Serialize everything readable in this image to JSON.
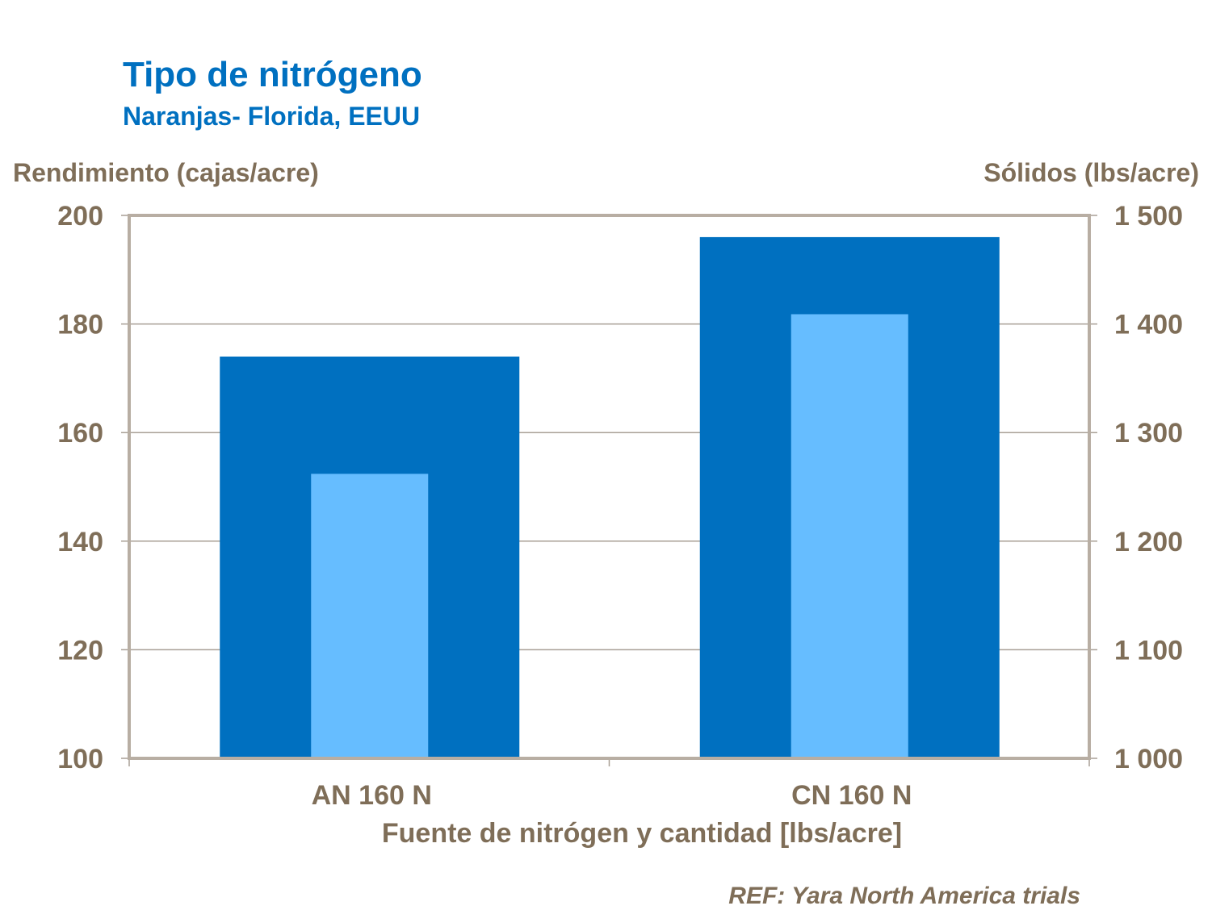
{
  "chart_data": {
    "type": "bar",
    "title": "Tipo de nitrógeno",
    "subtitle": "Naranjas- Florida, EEUU",
    "xlabel": "Fuente de nitrógen y cantidad [lbs/acre]",
    "ylabel": "Rendimiento (cajas/acre)",
    "y2label": "Sólidos (lbs/acre)",
    "categories": [
      "AN 160 N",
      "CN 160 N"
    ],
    "series": [
      {
        "axis": "left",
        "color": "#0070C0",
        "values": [
          174,
          196
        ]
      },
      {
        "axis": "right",
        "color": "#66BDFF",
        "values": [
          1262,
          1409
        ]
      }
    ],
    "ylim": [
      100,
      200
    ],
    "y2lim": [
      1000,
      1500
    ],
    "yticks": [
      "100",
      "120",
      "140",
      "160",
      "180",
      "200"
    ],
    "y2ticks": [
      "1 000",
      "1 100",
      "1 200",
      "1 300",
      "1 400",
      "1 500"
    ],
    "grid": true,
    "note": "REF: Yara North America trials"
  }
}
